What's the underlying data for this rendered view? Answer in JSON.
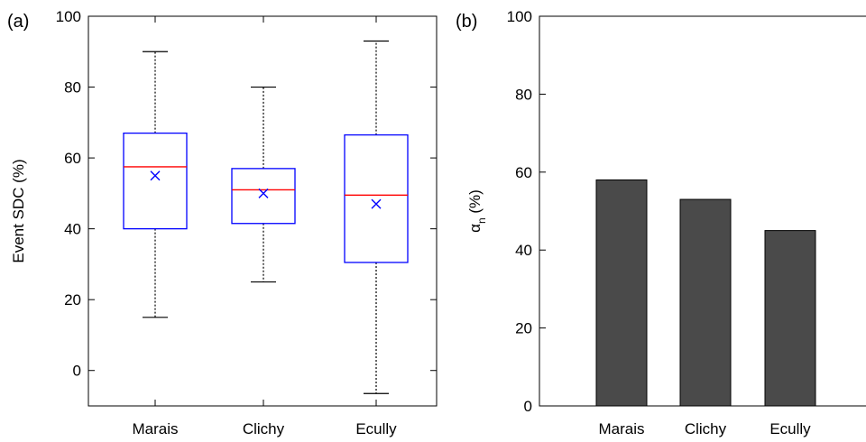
{
  "chart_data": [
    {
      "type": "boxplot",
      "panel_label": "(a)",
      "categories": [
        "Marais",
        "Clichy",
        "Ecully"
      ],
      "ylabel": "Event SDC (%)",
      "ylim": [
        -10,
        100
      ],
      "yticks": [
        0,
        20,
        40,
        60,
        80,
        100
      ],
      "boxes": [
        {
          "name": "Marais",
          "whisker_low": 15,
          "q1": 40,
          "median": 57.5,
          "q3": 67,
          "whisker_high": 90,
          "mean": 55
        },
        {
          "name": "Clichy",
          "whisker_low": 25,
          "q1": 41.5,
          "median": 51,
          "q3": 57,
          "whisker_high": 80,
          "mean": 50
        },
        {
          "name": "Ecully",
          "whisker_low": -6.5,
          "q1": 30.5,
          "median": 49.5,
          "q3": 66.5,
          "whisker_high": 93,
          "mean": 47
        }
      ],
      "colors": {
        "box": "#0000ff",
        "median": "#ff0000",
        "mean": "#0000ff",
        "whisker": "#000000"
      },
      "grid": false
    },
    {
      "type": "bar",
      "panel_label": "(b)",
      "categories": [
        "Marais",
        "Clichy",
        "Ecully"
      ],
      "values": [
        58,
        53,
        45
      ],
      "ylabel_main": "α",
      "ylabel_sub": "n",
      "ylabel_unit": " (%)",
      "ylim": [
        0,
        100
      ],
      "yticks": [
        0,
        20,
        40,
        60,
        80,
        100
      ],
      "colors": {
        "bar": "#4a4a4a",
        "bar_edge": "#000000"
      },
      "grid": false
    }
  ]
}
